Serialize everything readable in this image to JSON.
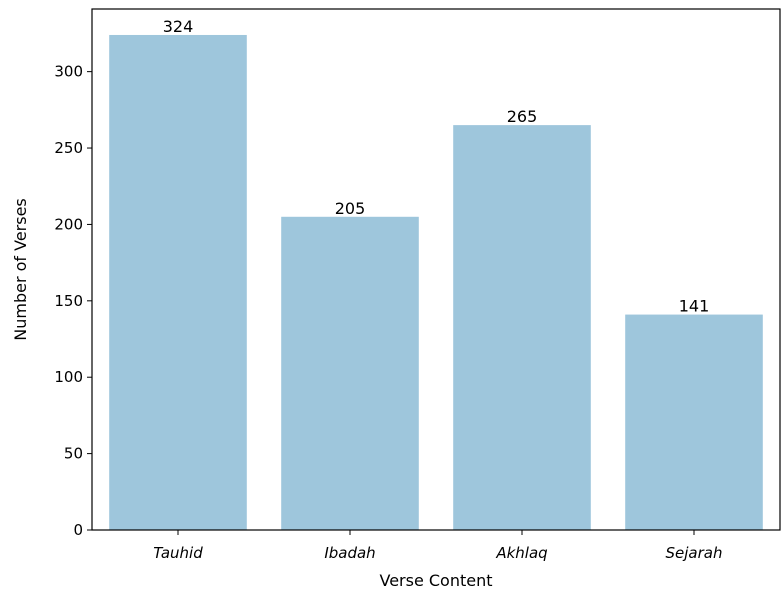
{
  "chart_data": {
    "type": "bar",
    "categories": [
      "Tauhid",
      "Ibadah",
      "Akhlaq",
      "Sejarah"
    ],
    "values": [
      324,
      205,
      265,
      141
    ],
    "data_labels": [
      "324",
      "205",
      "265",
      "141"
    ],
    "title": "",
    "xlabel": "Verse Content",
    "ylabel": "Number of Verses",
    "ylim": [
      0,
      341
    ],
    "yticks": [
      0,
      50,
      100,
      150,
      200,
      250,
      300
    ],
    "bar_color": "#9ec6dc",
    "grid": false,
    "legend": "none"
  }
}
